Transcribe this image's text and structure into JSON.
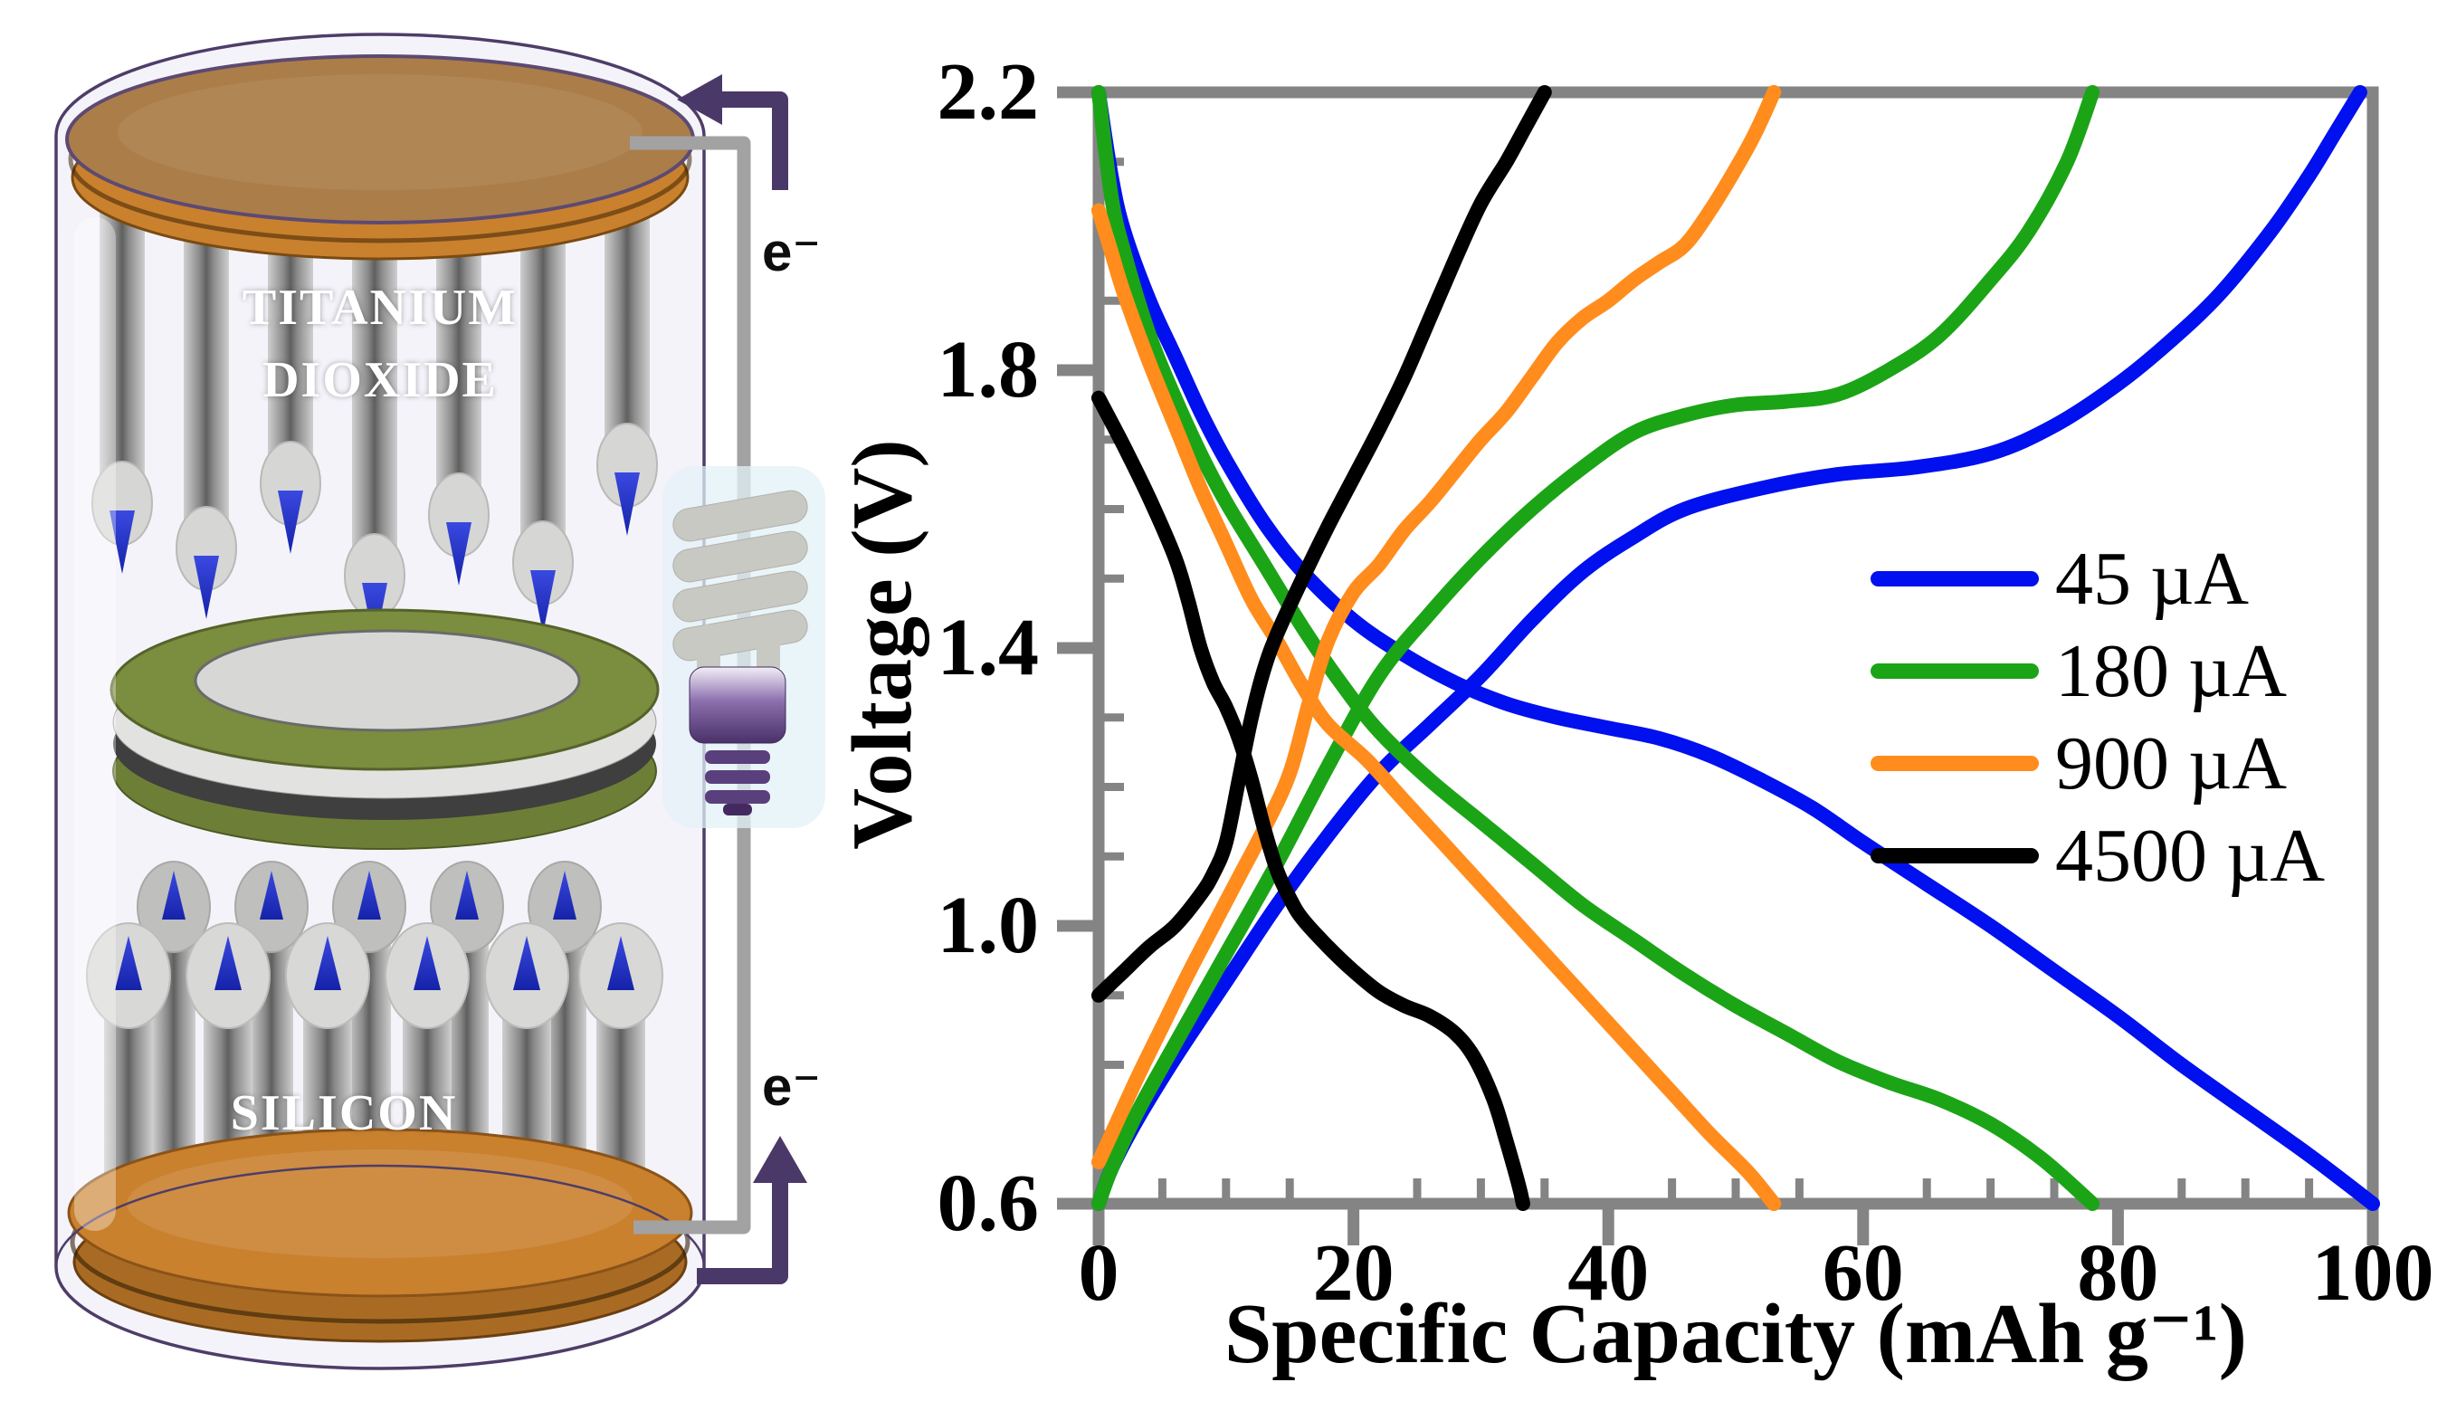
{
  "battery_diagram": {
    "labels": {
      "top_electrode_line1": "TITANIUM",
      "top_electrode_line2": "DIOXIDE",
      "bottom_electrode": "SILICON",
      "electron_top": "e⁻",
      "electron_bottom": "e⁻"
    },
    "colors": {
      "copper_cap": "#C9812E",
      "cap_surface": "#AB7D49",
      "separator_ring": "#7B8D3E",
      "nanowire_gray": "#8A8A8A",
      "tip_blue": "#2433C4",
      "glass_outline": "#4E3D68",
      "wire_gray": "#A2A2A2",
      "arrow_purple": "#4A3869",
      "bulb_base_purple": "#5A3F7D"
    }
  },
  "chart_data": {
    "type": "line",
    "title": "",
    "xlabel": "Specific Capacity (mAh g⁻¹)",
    "ylabel": "Voltage (V)",
    "xlim": [
      0,
      100
    ],
    "ylim": [
      0.6,
      2.2
    ],
    "x_major_ticks": [
      0,
      20,
      40,
      60,
      80,
      100
    ],
    "x_major_labels": [
      "0",
      "20",
      "40",
      "60",
      "80",
      "100"
    ],
    "x_minor_step": 5,
    "y_major_ticks": [
      2.2,
      1.8,
      1.4,
      1.0,
      0.6
    ],
    "y_major_labels": [
      "2.2",
      "1.8",
      "1.4",
      "1.0",
      "0.6"
    ],
    "y_minor_step": 0.1,
    "grid": false,
    "legend_position": "center-right",
    "axis_color": "#848484",
    "series": [
      {
        "name": "45 µA",
        "color": "#0010EE",
        "discharge": [
          [
            0,
            2.2
          ],
          [
            1,
            2.08
          ],
          [
            2,
            2.0
          ],
          [
            4,
            1.9
          ],
          [
            6,
            1.82
          ],
          [
            8,
            1.74
          ],
          [
            10,
            1.67
          ],
          [
            13,
            1.58
          ],
          [
            16,
            1.51
          ],
          [
            20,
            1.44
          ],
          [
            24,
            1.39
          ],
          [
            28,
            1.35
          ],
          [
            32,
            1.32
          ],
          [
            36,
            1.3
          ],
          [
            40,
            1.285
          ],
          [
            44,
            1.27
          ],
          [
            48,
            1.245
          ],
          [
            52,
            1.21
          ],
          [
            56,
            1.17
          ],
          [
            60,
            1.12
          ],
          [
            65,
            1.06
          ],
          [
            70,
            1.0
          ],
          [
            75,
            0.935
          ],
          [
            80,
            0.87
          ],
          [
            85,
            0.8
          ],
          [
            90,
            0.735
          ],
          [
            95,
            0.67
          ],
          [
            100,
            0.6
          ]
        ],
        "charge": [
          [
            0,
            0.6
          ],
          [
            1,
            0.65
          ],
          [
            3,
            0.72
          ],
          [
            6,
            0.81
          ],
          [
            10,
            0.92
          ],
          [
            14,
            1.03
          ],
          [
            18,
            1.13
          ],
          [
            22,
            1.22
          ],
          [
            26,
            1.29
          ],
          [
            30,
            1.36
          ],
          [
            34,
            1.44
          ],
          [
            38,
            1.51
          ],
          [
            42,
            1.56
          ],
          [
            46,
            1.6
          ],
          [
            52,
            1.63
          ],
          [
            58,
            1.65
          ],
          [
            64,
            1.66
          ],
          [
            70,
            1.68
          ],
          [
            75,
            1.72
          ],
          [
            80,
            1.78
          ],
          [
            84,
            1.84
          ],
          [
            88,
            1.91
          ],
          [
            92,
            2.0
          ],
          [
            95,
            2.08
          ],
          [
            97,
            2.14
          ],
          [
            99,
            2.2
          ]
        ]
      },
      {
        "name": "180 µA",
        "color": "#1CA417",
        "discharge": [
          [
            0,
            2.2
          ],
          [
            1,
            2.05
          ],
          [
            2,
            1.97
          ],
          [
            4,
            1.85
          ],
          [
            6,
            1.76
          ],
          [
            8,
            1.68
          ],
          [
            10,
            1.61
          ],
          [
            13,
            1.52
          ],
          [
            16,
            1.43
          ],
          [
            19,
            1.35
          ],
          [
            22,
            1.28
          ],
          [
            26,
            1.21
          ],
          [
            30,
            1.15
          ],
          [
            34,
            1.09
          ],
          [
            38,
            1.03
          ],
          [
            42,
            0.98
          ],
          [
            46,
            0.93
          ],
          [
            50,
            0.885
          ],
          [
            54,
            0.845
          ],
          [
            58,
            0.805
          ],
          [
            62,
            0.775
          ],
          [
            66,
            0.75
          ],
          [
            70,
            0.715
          ],
          [
            74,
            0.665
          ],
          [
            78,
            0.6
          ]
        ],
        "charge": [
          [
            0,
            0.6
          ],
          [
            1,
            0.65
          ],
          [
            3,
            0.73
          ],
          [
            6,
            0.83
          ],
          [
            10,
            0.96
          ],
          [
            14,
            1.09
          ],
          [
            18,
            1.23
          ],
          [
            22,
            1.36
          ],
          [
            26,
            1.45
          ],
          [
            30,
            1.53
          ],
          [
            34,
            1.6
          ],
          [
            38,
            1.66
          ],
          [
            42,
            1.71
          ],
          [
            46,
            1.735
          ],
          [
            50,
            1.75
          ],
          [
            54,
            1.755
          ],
          [
            58,
            1.765
          ],
          [
            62,
            1.8
          ],
          [
            66,
            1.85
          ],
          [
            70,
            1.93
          ],
          [
            73,
            2.0
          ],
          [
            76,
            2.1
          ],
          [
            78,
            2.2
          ]
        ]
      },
      {
        "name": "900 µA",
        "color": "#FF8C1C",
        "discharge": [
          [
            0,
            2.03
          ],
          [
            1,
            1.97
          ],
          [
            2,
            1.91
          ],
          [
            4,
            1.81
          ],
          [
            6,
            1.72
          ],
          [
            8,
            1.63
          ],
          [
            10,
            1.55
          ],
          [
            12,
            1.47
          ],
          [
            14,
            1.41
          ],
          [
            16,
            1.345
          ],
          [
            18,
            1.29
          ],
          [
            21,
            1.24
          ],
          [
            24,
            1.18
          ],
          [
            27,
            1.12
          ],
          [
            30,
            1.06
          ],
          [
            33,
            1.0
          ],
          [
            36,
            0.94
          ],
          [
            39,
            0.88
          ],
          [
            42,
            0.82
          ],
          [
            45,
            0.76
          ],
          [
            48,
            0.7
          ],
          [
            51,
            0.645
          ],
          [
            53,
            0.6
          ]
        ],
        "charge": [
          [
            0,
            0.66
          ],
          [
            1,
            0.7
          ],
          [
            3,
            0.78
          ],
          [
            5,
            0.855
          ],
          [
            7,
            0.93
          ],
          [
            9,
            1.0
          ],
          [
            11,
            1.07
          ],
          [
            13,
            1.14
          ],
          [
            15,
            1.22
          ],
          [
            16.5,
            1.32
          ],
          [
            18,
            1.41
          ],
          [
            20,
            1.48
          ],
          [
            22,
            1.52
          ],
          [
            24,
            1.57
          ],
          [
            26,
            1.61
          ],
          [
            28,
            1.655
          ],
          [
            30,
            1.7
          ],
          [
            32,
            1.74
          ],
          [
            34,
            1.79
          ],
          [
            36,
            1.84
          ],
          [
            38,
            1.875
          ],
          [
            40,
            1.9
          ],
          [
            42,
            1.93
          ],
          [
            44,
            1.955
          ],
          [
            46,
            1.98
          ],
          [
            48,
            2.03
          ],
          [
            50,
            2.09
          ],
          [
            51.5,
            2.14
          ],
          [
            53,
            2.2
          ]
        ]
      },
      {
        "name": "4500 µA",
        "color": "#000000",
        "discharge": [
          [
            0,
            1.76
          ],
          [
            2,
            1.69
          ],
          [
            4,
            1.615
          ],
          [
            6,
            1.53
          ],
          [
            7,
            1.47
          ],
          [
            8,
            1.4
          ],
          [
            9,
            1.35
          ],
          [
            10,
            1.315
          ],
          [
            11,
            1.27
          ],
          [
            12,
            1.21
          ],
          [
            13,
            1.14
          ],
          [
            14,
            1.08
          ],
          [
            15,
            1.04
          ],
          [
            16,
            1.01
          ],
          [
            18,
            0.97
          ],
          [
            20,
            0.935
          ],
          [
            22,
            0.905
          ],
          [
            24,
            0.885
          ],
          [
            26,
            0.87
          ],
          [
            28,
            0.845
          ],
          [
            29.5,
            0.81
          ],
          [
            31,
            0.75
          ],
          [
            32,
            0.69
          ],
          [
            33,
            0.625
          ],
          [
            33.3,
            0.6
          ]
        ],
        "charge": [
          [
            0,
            0.9
          ],
          [
            2,
            0.935
          ],
          [
            4,
            0.97
          ],
          [
            6,
            1.0
          ],
          [
            8,
            1.045
          ],
          [
            9,
            1.075
          ],
          [
            10,
            1.12
          ],
          [
            11,
            1.21
          ],
          [
            12,
            1.3
          ],
          [
            13,
            1.37
          ],
          [
            14,
            1.42
          ],
          [
            16,
            1.5
          ],
          [
            18,
            1.575
          ],
          [
            20,
            1.645
          ],
          [
            22,
            1.715
          ],
          [
            24,
            1.79
          ],
          [
            26,
            1.875
          ],
          [
            28,
            1.96
          ],
          [
            30,
            2.04
          ],
          [
            32,
            2.1
          ],
          [
            33.5,
            2.15
          ],
          [
            35,
            2.2
          ]
        ]
      }
    ]
  }
}
